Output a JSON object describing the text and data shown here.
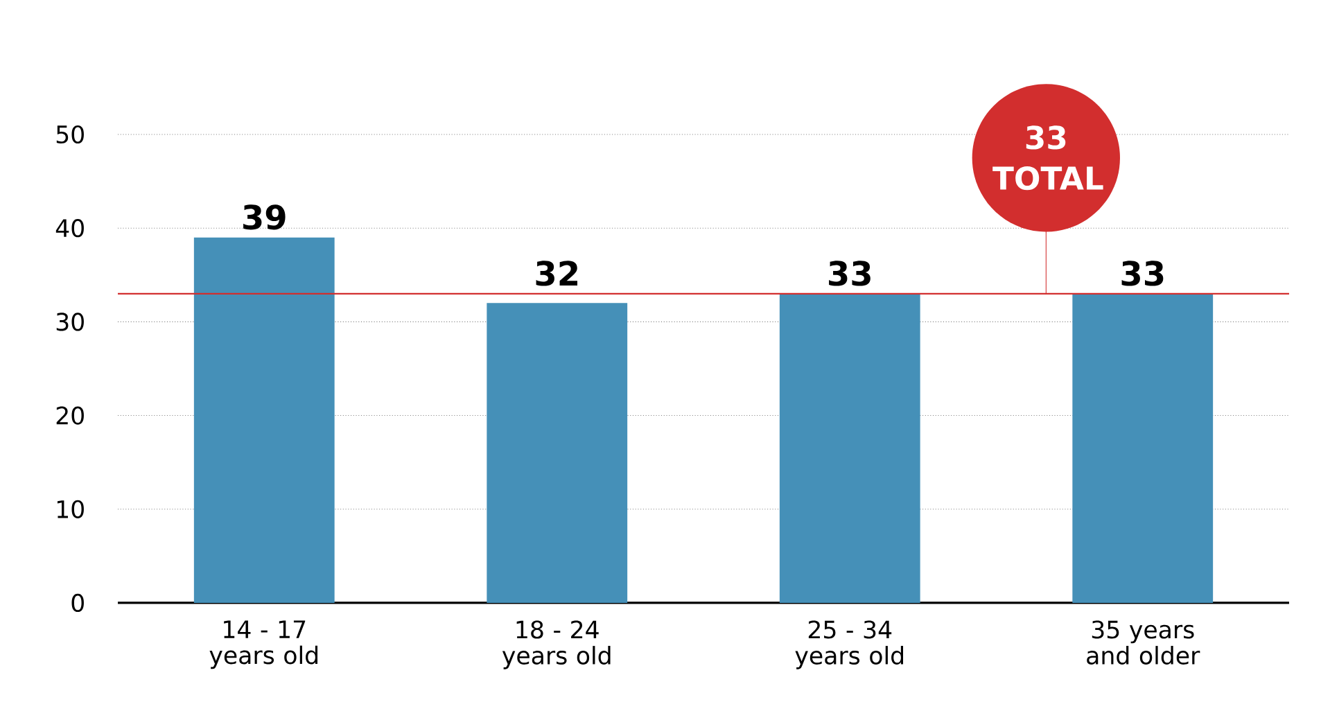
{
  "chart_data": {
    "type": "bar",
    "categories": [
      "14 - 17 years old",
      "18 - 24 years old",
      "25 - 34 years old",
      "35 years and older"
    ],
    "values": [
      39,
      32,
      33,
      33
    ],
    "color": "#4590b8",
    "data_labels": true,
    "ylim": [
      0,
      50
    ],
    "yticks": [
      0,
      10,
      20,
      30,
      40,
      50
    ],
    "grid": "y",
    "ref_lines": [
      {
        "axis": "y",
        "value": 33,
        "label": "33 TOTAL",
        "color": "#d22e2e"
      }
    ]
  }
}
